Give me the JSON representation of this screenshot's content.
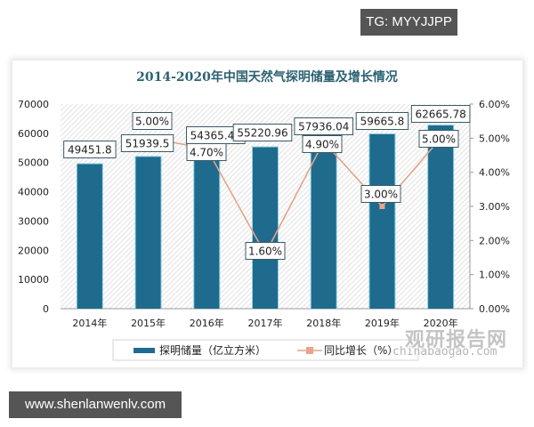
{
  "badges": {
    "top_right": "TG: MYYJJPP",
    "bottom_left": "www.shenlanwenlv.com"
  },
  "watermark": {
    "cn": "观研报告网",
    "en": "chinabaogao.com"
  },
  "colors": {
    "bar": "#1f6b8e",
    "bar_edge": "#8fd0e6",
    "line": "#e3a48a",
    "marker": "#e8a48c",
    "title": "#2b6172",
    "hatch": "#d8d8d8"
  },
  "chart_data": {
    "type": "bar",
    "title": "2014-2020年中国天然气探明储量及增长情况",
    "categories": [
      "2014年",
      "2015年",
      "2016年",
      "2017年",
      "2018年",
      "2019年",
      "2020年"
    ],
    "series": [
      {
        "name": "探明储量（亿立方米）",
        "type": "bar",
        "axis": "left",
        "values": [
          49451.8,
          51939.5,
          54365.46,
          55220.96,
          57936.04,
          59665.8,
          62665.78
        ],
        "labels": [
          "49451.8",
          "51939.5",
          "54365.46",
          "55220.96",
          "57936.04",
          "59665.8",
          "62665.78"
        ]
      },
      {
        "name": "同比增长（%）",
        "type": "line",
        "axis": "right",
        "values": [
          null,
          5.0,
          4.7,
          1.6,
          4.9,
          3.0,
          5.0
        ],
        "labels": [
          "",
          "5.00%",
          "4.70%",
          "1.60%",
          "4.90%",
          "3.00%",
          "5.00%"
        ]
      }
    ],
    "xlabel": "",
    "ylabel_left": "",
    "ylabel_right": "",
    "ylim_left": [
      0,
      70000
    ],
    "ylim_right": [
      0,
      6
    ],
    "yticks_left": [
      "70000",
      "60000",
      "50000",
      "40000",
      "30000",
      "20000",
      "10000",
      "0"
    ],
    "yticks_right": [
      "6.00%",
      "5.00%",
      "4.00%",
      "3.00%",
      "2.00%",
      "1.00%",
      "0.00%"
    ],
    "legend": [
      "探明储量（亿立方米）",
      "同比增长（%）"
    ],
    "legend_position": "bottom",
    "grid": false
  }
}
